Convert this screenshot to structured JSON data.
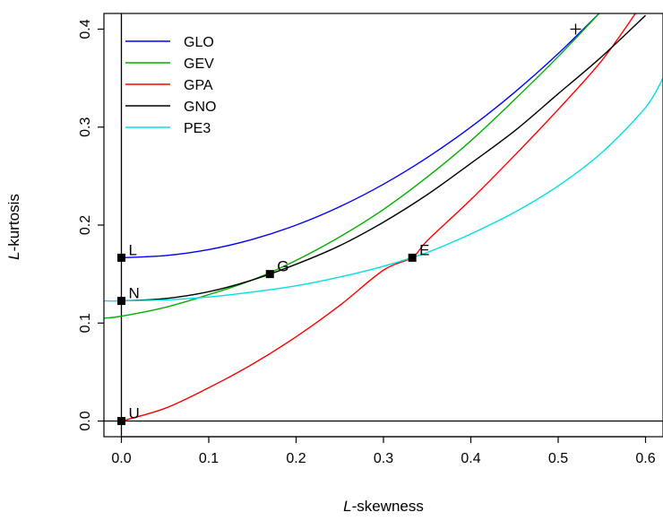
{
  "chart_data": {
    "type": "line",
    "title": "",
    "xlabel": {
      "italic": "L",
      "rest": "-skewness"
    },
    "ylabel": {
      "italic": "L",
      "rest": "-kurtosis"
    },
    "xlim": [
      -0.02,
      0.62
    ],
    "ylim": [
      -0.016,
      0.416
    ],
    "x_ticks": [
      "0.0",
      "0.1",
      "0.2",
      "0.3",
      "0.4",
      "0.5",
      "0.6"
    ],
    "y_ticks": [
      "0.0",
      "0.1",
      "0.2",
      "0.3",
      "0.4"
    ],
    "x_tick_values": [
      0.0,
      0.1,
      0.2,
      0.3,
      0.4,
      0.5,
      0.6
    ],
    "y_tick_values": [
      0.0,
      0.1,
      0.2,
      0.3,
      0.4
    ],
    "grid": false,
    "legend_position": "top-left",
    "reference_lines": [
      {
        "orientation": "vertical",
        "at": 0.0
      },
      {
        "orientation": "horizontal",
        "at": 0.0
      }
    ],
    "series": [
      {
        "name": "GLO",
        "color": "#0000ff",
        "x": [
          0.0,
          0.05,
          0.1,
          0.15,
          0.2,
          0.25,
          0.3,
          0.35,
          0.4,
          0.45,
          0.5,
          0.55
        ],
        "y": [
          0.1667,
          0.1688,
          0.175,
          0.1854,
          0.2,
          0.2188,
          0.2417,
          0.2688,
          0.3,
          0.3354,
          0.375,
          0.4188
        ]
      },
      {
        "name": "GEV",
        "color": "#00b000",
        "x": [
          -0.02,
          0.0,
          0.05,
          0.1,
          0.15,
          0.2,
          0.25,
          0.3,
          0.35,
          0.4,
          0.45,
          0.5,
          0.55
        ],
        "y": [
          0.105,
          0.107,
          0.116,
          0.129,
          0.144,
          0.164,
          0.188,
          0.216,
          0.249,
          0.286,
          0.328,
          0.372,
          0.419
        ]
      },
      {
        "name": "GPA",
        "color": "#ff0000",
        "x": [
          0.0,
          0.05,
          0.1,
          0.15,
          0.2,
          0.25,
          0.3,
          0.333,
          0.35,
          0.4,
          0.45,
          0.5,
          0.55,
          0.59
        ],
        "y": [
          0.0,
          0.013,
          0.034,
          0.058,
          0.086,
          0.118,
          0.154,
          0.167,
          0.184,
          0.226,
          0.271,
          0.318,
          0.368,
          0.418
        ]
      },
      {
        "name": "GNO",
        "color": "#000000",
        "x": [
          0.0,
          0.05,
          0.1,
          0.15,
          0.2,
          0.25,
          0.3,
          0.35,
          0.4,
          0.45,
          0.5,
          0.55,
          0.6
        ],
        "y": [
          0.1226,
          0.125,
          0.132,
          0.144,
          0.16,
          0.179,
          0.203,
          0.231,
          0.263,
          0.296,
          0.334,
          0.372,
          0.414
        ]
      },
      {
        "name": "PE3",
        "color": "#00e0e0",
        "x": [
          -0.02,
          0.0,
          0.05,
          0.1,
          0.15,
          0.2,
          0.25,
          0.3,
          0.35,
          0.4,
          0.45,
          0.5,
          0.55,
          0.6,
          0.62
        ],
        "y": [
          0.1226,
          0.1226,
          0.1236,
          0.1266,
          0.1316,
          0.138,
          0.147,
          0.158,
          0.172,
          0.191,
          0.213,
          0.24,
          0.274,
          0.32,
          0.35
        ]
      }
    ],
    "points": [
      {
        "label": "L",
        "x": 0.0,
        "y": 0.1667,
        "marker": "square"
      },
      {
        "label": "N",
        "x": 0.0,
        "y": 0.1226,
        "marker": "square"
      },
      {
        "label": "U",
        "x": 0.0,
        "y": 0.0,
        "marker": "square"
      },
      {
        "label": "G",
        "x": 0.17,
        "y": 0.15,
        "marker": "square"
      },
      {
        "label": "E",
        "x": 0.333,
        "y": 0.1667,
        "marker": "square"
      },
      {
        "label": "",
        "x": 0.52,
        "y": 0.4,
        "marker": "plus"
      }
    ]
  }
}
